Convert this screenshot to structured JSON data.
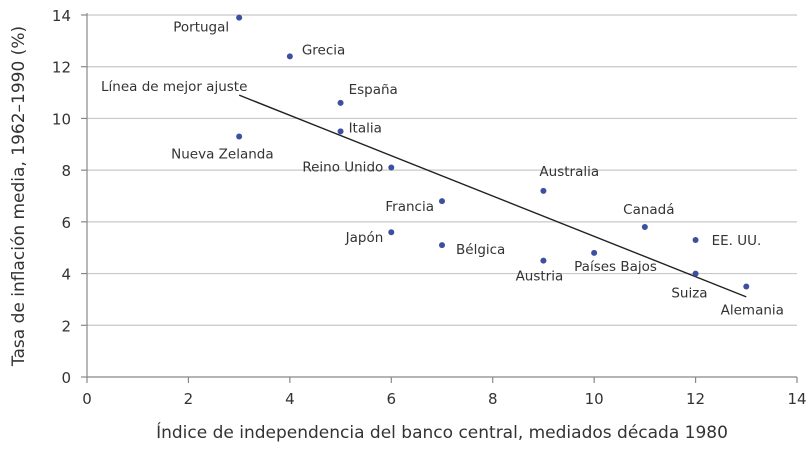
{
  "chart_data": {
    "type": "scatter",
    "xlabel": "Índice de independencia del banco central, mediados década 1980",
    "ylabel": "Tasa de inflación media, 1962–1990 (%)",
    "xlim": [
      0,
      14
    ],
    "ylim": [
      0,
      14
    ],
    "xticks": [
      0,
      2,
      4,
      6,
      8,
      10,
      12,
      14
    ],
    "yticks": [
      0,
      2,
      4,
      6,
      8,
      10,
      12,
      14
    ],
    "grid": "horizontal",
    "point_color": "#3d4fa0",
    "points": [
      {
        "label": "Portugal",
        "x": 3,
        "y": 13.9
      },
      {
        "label": "Grecia",
        "x": 4,
        "y": 12.4
      },
      {
        "label": "España",
        "x": 5,
        "y": 10.6
      },
      {
        "label": "Italia",
        "x": 5,
        "y": 9.5
      },
      {
        "label": "Nueva Zelanda",
        "x": 3,
        "y": 9.3
      },
      {
        "label": "Reino Unido",
        "x": 6,
        "y": 8.1
      },
      {
        "label": "Australia",
        "x": 9,
        "y": 7.2
      },
      {
        "label": "Francia",
        "x": 7,
        "y": 6.8
      },
      {
        "label": "Canadá",
        "x": 11,
        "y": 5.8
      },
      {
        "label": "Japón",
        "x": 6,
        "y": 5.6
      },
      {
        "label": "EE. UU.",
        "x": 12,
        "y": 5.3
      },
      {
        "label": "Bélgica",
        "x": 7,
        "y": 5.1
      },
      {
        "label": "Países Bajos",
        "x": 10,
        "y": 4.8
      },
      {
        "label": "Austria",
        "x": 9,
        "y": 4.5
      },
      {
        "label": "Suiza",
        "x": 12,
        "y": 4.0
      },
      {
        "label": "Alemania",
        "x": 13,
        "y": 3.5
      }
    ],
    "fit_line": {
      "label": "Línea de mejor ajuste",
      "x": [
        3,
        13
      ],
      "y": [
        10.9,
        3.1
      ]
    }
  }
}
